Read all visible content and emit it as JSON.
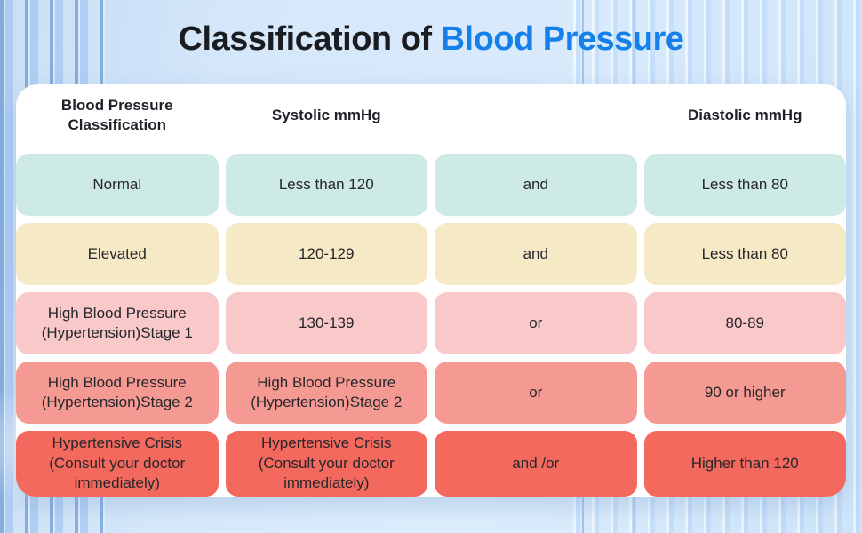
{
  "title": {
    "prefix": "Classification of",
    "highlight": "Blood Pressure"
  },
  "colors": {
    "title_text": "#1b1c20",
    "title_highlight": "#157fea",
    "card_background": "#ffffff",
    "page_background": "#d5e7fa"
  },
  "chart_data": {
    "type": "table",
    "title": "Classification of Blood Pressure",
    "columns": [
      "Blood Pressure Classification",
      "Systolic mmHg",
      "",
      "Diastolic mmHg"
    ],
    "rows": [
      {
        "classification": "Normal",
        "systolic": "Less than 120",
        "connector": "and",
        "diastolic": "Less than 80",
        "color": "#cdeae6"
      },
      {
        "classification": "Elevated",
        "systolic": "120-129",
        "connector": "and",
        "diastolic": "Less than 80",
        "color": "#f6e9c6"
      },
      {
        "classification": "High Blood Pressure (Hypertension)Stage 1",
        "systolic": "130-139",
        "connector": "or",
        "diastolic": "80-89",
        "color": "#f9c9c9"
      },
      {
        "classification": "High Blood Pressure (Hypertension)Stage 2",
        "systolic": "High Blood Pressure (Hypertension)Stage 2",
        "connector": "or",
        "diastolic": "90 or higher",
        "color": "#f59a92"
      },
      {
        "classification": "Hypertensive Crisis (Consult your doctor immediately)",
        "systolic": "Hypertensive Crisis (Consult your doctor immediately)",
        "connector": "and /or",
        "diastolic": "Higher than 120",
        "color": "#f4695e"
      }
    ]
  }
}
